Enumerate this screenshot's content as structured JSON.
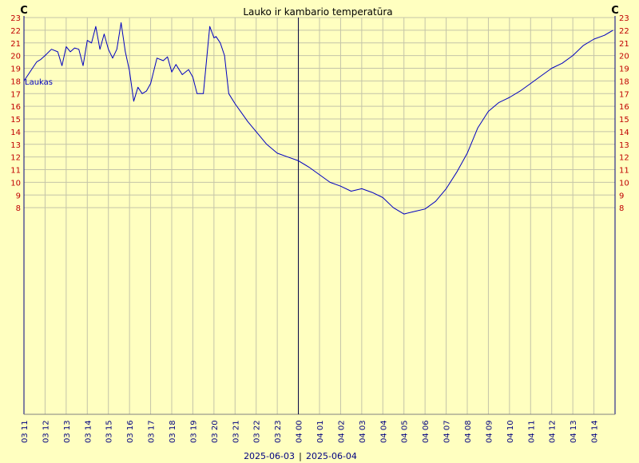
{
  "chart_data": {
    "type": "line",
    "title": "Lauko ir kambario temperatūra",
    "ylabel_left": "C",
    "ylabel_right": "C",
    "ylim": [
      -8.3,
      23
    ],
    "yticks": [
      8,
      9,
      10,
      11,
      12,
      13,
      14,
      15,
      16,
      17,
      18,
      19,
      20,
      21,
      22,
      23
    ],
    "grid": true,
    "x_tick_labels": [
      "03 11",
      "03 12",
      "03 13",
      "03 14",
      "03 15",
      "03 16",
      "03 17",
      "03 18",
      "03 19",
      "03 20",
      "03 21",
      "03 22",
      "03 23",
      "04 00",
      "04 01",
      "04 02",
      "04 03",
      "04 04",
      "04 05",
      "04 06",
      "04 07",
      "04 08",
      "04 09",
      "04 10",
      "04 11",
      "04 12",
      "04 13",
      "04 14"
    ],
    "x_tick_hours": [
      11,
      12,
      13,
      14,
      15,
      16,
      17,
      18,
      19,
      20,
      21,
      22,
      23,
      24,
      25,
      26,
      27,
      28,
      29,
      30,
      31,
      32,
      33,
      34,
      35,
      36,
      37,
      38
    ],
    "x_start_hour": 11,
    "x_end_hour": 39,
    "day_divider_hour": 24,
    "date_left": "2025-06-03",
    "date_right": "2025-06-04",
    "date_separator": "|",
    "series": [
      {
        "name": "Laukas",
        "color": "#0000c0",
        "x_hours": [
          11.0,
          11.2,
          11.4,
          11.6,
          11.8,
          12.0,
          12.3,
          12.6,
          12.8,
          13.0,
          13.2,
          13.4,
          13.6,
          13.8,
          14.0,
          14.2,
          14.4,
          14.6,
          14.8,
          15.0,
          15.2,
          15.4,
          15.6,
          15.8,
          16.0,
          16.2,
          16.4,
          16.6,
          16.8,
          17.0,
          17.3,
          17.6,
          17.8,
          18.0,
          18.2,
          18.5,
          18.8,
          19.0,
          19.2,
          19.5,
          19.8,
          20.0,
          20.1,
          20.3,
          20.5,
          20.7,
          21.0,
          21.3,
          21.6,
          22.0,
          22.5,
          23.0,
          23.5,
          24.0,
          24.5,
          25.0,
          25.5,
          26.0,
          26.5,
          27.0,
          27.5,
          28.0,
          28.5,
          29.0,
          29.5,
          30.0,
          30.5,
          31.0,
          31.5,
          32.0,
          32.5,
          33.0,
          33.5,
          34.0,
          34.5,
          35.0,
          35.5,
          36.0,
          36.5,
          37.0,
          37.5,
          38.0,
          38.5,
          38.9
        ],
        "y_values": [
          18.0,
          18.5,
          19.0,
          19.5,
          19.7,
          20.0,
          20.5,
          20.3,
          19.2,
          20.7,
          20.3,
          20.6,
          20.5,
          19.2,
          21.2,
          21.0,
          22.3,
          20.5,
          21.7,
          20.5,
          19.8,
          20.5,
          22.6,
          20.3,
          18.8,
          16.4,
          17.5,
          17.0,
          17.2,
          17.8,
          19.8,
          19.6,
          19.9,
          18.7,
          19.3,
          18.5,
          18.9,
          18.3,
          17.0,
          17.0,
          22.3,
          21.4,
          21.5,
          21.0,
          20.0,
          17.0,
          16.2,
          15.5,
          14.8,
          14.0,
          13.0,
          12.3,
          12.0,
          11.7,
          11.2,
          10.6,
          10.0,
          9.7,
          9.3,
          9.5,
          9.2,
          8.8,
          8.0,
          7.5,
          7.7,
          7.9,
          8.5,
          9.5,
          10.8,
          12.3,
          14.3,
          15.6,
          16.3,
          16.7,
          17.2,
          17.8,
          18.4,
          19.0,
          19.4,
          20.0,
          20.8,
          21.3,
          21.6,
          22.0
        ]
      }
    ]
  }
}
